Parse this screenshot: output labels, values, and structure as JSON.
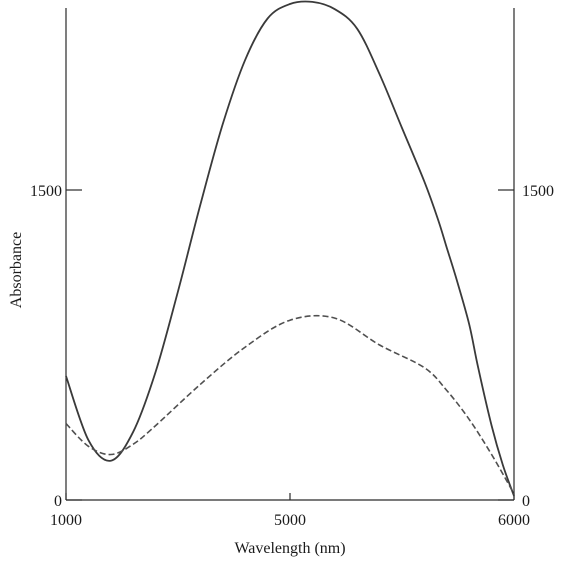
{
  "chart_data": {
    "type": "line",
    "title": "",
    "xlabel": "Wavelength (nm)",
    "ylabel": "Absorbance",
    "x_tick_labels": [
      "1000",
      "5000",
      "6000"
    ],
    "y_tick_labels_left": [
      "0",
      "1500"
    ],
    "y_tick_labels_right": [
      "0",
      "1500"
    ],
    "ylim": [
      0,
      2400
    ],
    "grid": false,
    "legend": "none",
    "series": [
      {
        "style": "solid",
        "color": "#3a3a3a",
        "x": [
          1000,
          1250,
          1500,
          1750,
          2000,
          2250,
          2500,
          2750,
          3000,
          3250,
          3500,
          3750,
          4000,
          4250,
          4500,
          4750,
          5000,
          5150,
          5250,
          5350,
          5500,
          5600,
          5750,
          5875,
          6000
        ],
        "y": [
          600,
          290,
          190,
          330,
          620,
          1010,
          1430,
          1820,
          2130,
          2330,
          2400,
          2410,
          2375,
          2280,
          2060,
          1800,
          1540,
          1360,
          1220,
          1080,
          850,
          640,
          360,
          170,
          20
        ]
      },
      {
        "style": "dashed",
        "color": "#505050",
        "x": [
          1000,
          1250,
          1500,
          1750,
          2000,
          2500,
          3000,
          3500,
          4000,
          4500,
          5000,
          5250,
          5500,
          5750,
          6000
        ],
        "y": [
          370,
          260,
          220,
          270,
          360,
          560,
          740,
          870,
          880,
          750,
          640,
          530,
          390,
          220,
          30
        ]
      }
    ]
  }
}
